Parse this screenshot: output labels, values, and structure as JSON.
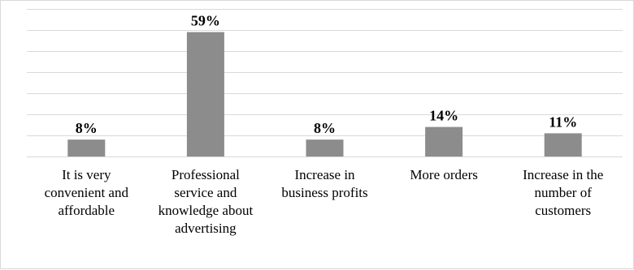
{
  "chart_data": {
    "type": "bar",
    "categories": [
      "It is very\nconvenient and\naffordable",
      "Professional\nservice and\nknowledge about\nadvertising",
      "Increase in\nbusiness profits",
      "More orders",
      "Increase in the\nnumber of\ncustomers"
    ],
    "values": [
      8,
      59,
      8,
      14,
      11
    ],
    "data_labels": [
      "8%",
      "59%",
      "8%",
      "14%",
      "11%"
    ],
    "ylim": [
      0,
      70
    ],
    "grid": true,
    "title": "",
    "xlabel": "",
    "ylabel": "",
    "colors": {
      "bar": "#8c8c8c",
      "grid": "#d9d9d9",
      "text": "#000000",
      "border": "#d9d9d9"
    }
  }
}
